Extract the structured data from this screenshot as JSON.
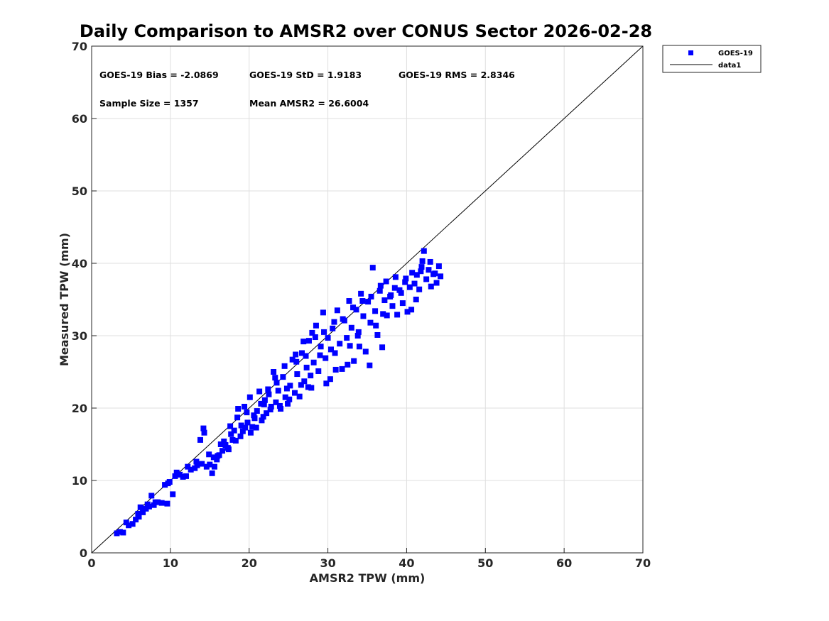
{
  "chart_data": {
    "type": "scatter",
    "title": "Daily Comparison to AMSR2 over CONUS Sector 2026-02-28",
    "xlabel": "AMSR2 TPW (mm)",
    "ylabel": "Measured TPW (mm)",
    "xlim": [
      0,
      70
    ],
    "ylim": [
      0,
      70
    ],
    "xticks": [
      "0",
      "10",
      "20",
      "30",
      "40",
      "50",
      "60",
      "70"
    ],
    "yticks": [
      "0",
      "10",
      "20",
      "30",
      "40",
      "50",
      "60",
      "70"
    ],
    "grid": true,
    "legend_position": "outside-top-right",
    "stats": {
      "bias": "GOES-19 Bias = -2.0869",
      "std": "GOES-19 StD = 1.9183",
      "rms": "GOES-19 RMS = 2.8346",
      "sample": "Sample Size = 1357",
      "mean": "Mean AMSR2 = 26.6004"
    },
    "series": [
      {
        "name": "GOES-19",
        "color": "#0000ff",
        "marker": "square",
        "points": [
          [
            3.2,
            2.7
          ],
          [
            3.6,
            2.9
          ],
          [
            4.0,
            2.8
          ],
          [
            4.7,
            3.8
          ],
          [
            5.2,
            4.0
          ],
          [
            5.6,
            4.6
          ],
          [
            6.0,
            5.0
          ],
          [
            6.2,
            6.3
          ],
          [
            6.5,
            5.6
          ],
          [
            6.9,
            6.1
          ],
          [
            7.3,
            6.4
          ],
          [
            7.6,
            7.9
          ],
          [
            7.9,
            6.6
          ],
          [
            8.4,
            7.0
          ],
          [
            8.9,
            6.9
          ],
          [
            9.3,
            9.4
          ],
          [
            9.6,
            6.8
          ],
          [
            9.9,
            9.8
          ],
          [
            10.3,
            8.1
          ],
          [
            10.6,
            10.6
          ],
          [
            11.2,
            10.8
          ],
          [
            11.6,
            10.5
          ],
          [
            12.0,
            10.6
          ],
          [
            12.6,
            11.5
          ],
          [
            13.1,
            11.7
          ],
          [
            13.4,
            12.1
          ],
          [
            13.8,
            15.6
          ],
          [
            14.2,
            17.2
          ],
          [
            14.3,
            16.6
          ],
          [
            14.6,
            11.9
          ],
          [
            15.0,
            12.2
          ],
          [
            15.3,
            11.0
          ],
          [
            15.6,
            11.9
          ],
          [
            15.9,
            12.9
          ],
          [
            16.2,
            13.5
          ],
          [
            16.6,
            14.1
          ],
          [
            17.0,
            14.9
          ],
          [
            17.3,
            14.5
          ],
          [
            17.6,
            17.5
          ],
          [
            17.9,
            15.6
          ],
          [
            18.3,
            15.5
          ],
          [
            18.6,
            19.9
          ],
          [
            18.9,
            16.1
          ],
          [
            19.2,
            16.8
          ],
          [
            19.5,
            17.3
          ],
          [
            19.8,
            18.0
          ],
          [
            20.1,
            21.5
          ],
          [
            20.4,
            17.4
          ],
          [
            20.7,
            18.6
          ],
          [
            21.0,
            19.6
          ],
          [
            21.3,
            22.3
          ],
          [
            21.6,
            18.3
          ],
          [
            21.9,
            20.5
          ],
          [
            22.2,
            19.3
          ],
          [
            22.5,
            21.9
          ],
          [
            22.8,
            20.2
          ],
          [
            23.1,
            25.0
          ],
          [
            23.4,
            20.8
          ],
          [
            23.7,
            22.4
          ],
          [
            24.0,
            19.9
          ],
          [
            24.3,
            24.3
          ],
          [
            24.6,
            21.5
          ],
          [
            24.9,
            20.6
          ],
          [
            25.2,
            23.1
          ],
          [
            25.5,
            26.7
          ],
          [
            25.8,
            22.1
          ],
          [
            26.1,
            24.7
          ],
          [
            26.4,
            21.6
          ],
          [
            26.7,
            27.6
          ],
          [
            27.0,
            23.7
          ],
          [
            27.3,
            25.6
          ],
          [
            27.6,
            29.3
          ],
          [
            27.9,
            22.8
          ],
          [
            28.2,
            26.3
          ],
          [
            28.5,
            31.4
          ],
          [
            28.8,
            25.1
          ],
          [
            29.1,
            28.5
          ],
          [
            29.4,
            33.2
          ],
          [
            29.7,
            26.9
          ],
          [
            30.0,
            29.7
          ],
          [
            30.3,
            24.0
          ],
          [
            30.6,
            31.0
          ],
          [
            30.9,
            27.6
          ],
          [
            31.2,
            33.5
          ],
          [
            31.5,
            28.9
          ],
          [
            31.8,
            25.4
          ],
          [
            32.1,
            32.1
          ],
          [
            32.4,
            29.7
          ],
          [
            32.7,
            34.8
          ],
          [
            33.0,
            31.1
          ],
          [
            33.3,
            26.5
          ],
          [
            33.6,
            33.6
          ],
          [
            33.9,
            30.5
          ],
          [
            34.2,
            35.8
          ],
          [
            34.5,
            32.7
          ],
          [
            34.8,
            27.8
          ],
          [
            35.1,
            34.7
          ],
          [
            35.4,
            31.8
          ],
          [
            35.7,
            39.4
          ],
          [
            36.0,
            33.4
          ],
          [
            36.3,
            30.1
          ],
          [
            36.6,
            36.2
          ],
          [
            36.9,
            28.4
          ],
          [
            37.2,
            34.9
          ],
          [
            37.5,
            32.8
          ],
          [
            37.9,
            35.4
          ],
          [
            38.2,
            34.1
          ],
          [
            38.5,
            36.6
          ],
          [
            38.8,
            32.9
          ],
          [
            39.1,
            36.3
          ],
          [
            39.5,
            34.5
          ],
          [
            39.8,
            37.4
          ],
          [
            40.1,
            33.3
          ],
          [
            40.4,
            36.7
          ],
          [
            40.7,
            38.7
          ],
          [
            41.0,
            37.2
          ],
          [
            41.3,
            38.4
          ],
          [
            41.6,
            36.4
          ],
          [
            41.9,
            39.5
          ],
          [
            42.2,
            41.7
          ],
          [
            42.5,
            37.8
          ],
          [
            42.8,
            39.1
          ],
          [
            43.1,
            36.8
          ],
          [
            43.4,
            38.5
          ],
          [
            43.8,
            37.3
          ],
          [
            44.1,
            39.6
          ],
          [
            44.3,
            38.2
          ],
          [
            13.3,
            12.6
          ],
          [
            14.9,
            13.6
          ],
          [
            16.4,
            15.0
          ],
          [
            18.1,
            16.9
          ],
          [
            19.7,
            19.4
          ],
          [
            20.9,
            17.3
          ],
          [
            22.0,
            21.1
          ],
          [
            23.5,
            23.5
          ],
          [
            24.8,
            22.7
          ],
          [
            26.0,
            26.4
          ],
          [
            27.2,
            27.2
          ],
          [
            28.4,
            29.8
          ],
          [
            29.5,
            30.5
          ],
          [
            30.8,
            31.9
          ],
          [
            31.9,
            32.3
          ],
          [
            33.2,
            33.9
          ],
          [
            34.4,
            34.8
          ],
          [
            35.5,
            35.4
          ],
          [
            36.7,
            36.9
          ],
          [
            37.0,
            33.0
          ],
          [
            38.6,
            38.1
          ],
          [
            39.3,
            35.9
          ],
          [
            40.6,
            33.6
          ],
          [
            41.8,
            38.9
          ],
          [
            43.0,
            40.2
          ],
          [
            32.5,
            26.0
          ],
          [
            34.0,
            28.5
          ],
          [
            35.3,
            25.9
          ],
          [
            31.0,
            25.3
          ],
          [
            29.8,
            23.4
          ],
          [
            27.5,
            22.9
          ],
          [
            28.0,
            30.4
          ],
          [
            26.9,
            29.2
          ],
          [
            25.9,
            27.4
          ],
          [
            24.5,
            25.8
          ],
          [
            23.3,
            24.2
          ],
          [
            22.4,
            22.6
          ],
          [
            21.5,
            20.6
          ],
          [
            20.6,
            19.0
          ],
          [
            19.4,
            20.2
          ],
          [
            18.5,
            18.7
          ],
          [
            17.7,
            16.4
          ],
          [
            16.8,
            15.4
          ],
          [
            15.5,
            13.2
          ],
          [
            14.0,
            12.3
          ],
          [
            12.2,
            11.9
          ],
          [
            10.8,
            11.1
          ],
          [
            9.7,
            9.6
          ],
          [
            8.1,
            7.0
          ],
          [
            7.1,
            6.7
          ],
          [
            5.9,
            5.4
          ],
          [
            4.4,
            4.2
          ],
          [
            37.4,
            37.5
          ],
          [
            38.0,
            35.6
          ],
          [
            39.9,
            37.9
          ],
          [
            42.0,
            40.3
          ],
          [
            43.6,
            38.6
          ],
          [
            41.2,
            35.0
          ],
          [
            36.1,
            31.4
          ],
          [
            33.8,
            30.0
          ],
          [
            32.8,
            28.6
          ],
          [
            30.4,
            28.1
          ],
          [
            29.0,
            27.3
          ],
          [
            27.8,
            24.5
          ],
          [
            26.6,
            23.2
          ],
          [
            25.1,
            21.2
          ],
          [
            23.9,
            20.3
          ],
          [
            22.7,
            19.8
          ],
          [
            21.8,
            18.8
          ],
          [
            20.2,
            16.6
          ],
          [
            19.0,
            17.6
          ],
          [
            17.4,
            14.3
          ],
          [
            16.0,
            13.4
          ]
        ]
      },
      {
        "name": "data1",
        "color": "#000000",
        "type": "line",
        "points": [
          [
            0,
            0
          ],
          [
            70,
            70
          ]
        ]
      }
    ]
  }
}
